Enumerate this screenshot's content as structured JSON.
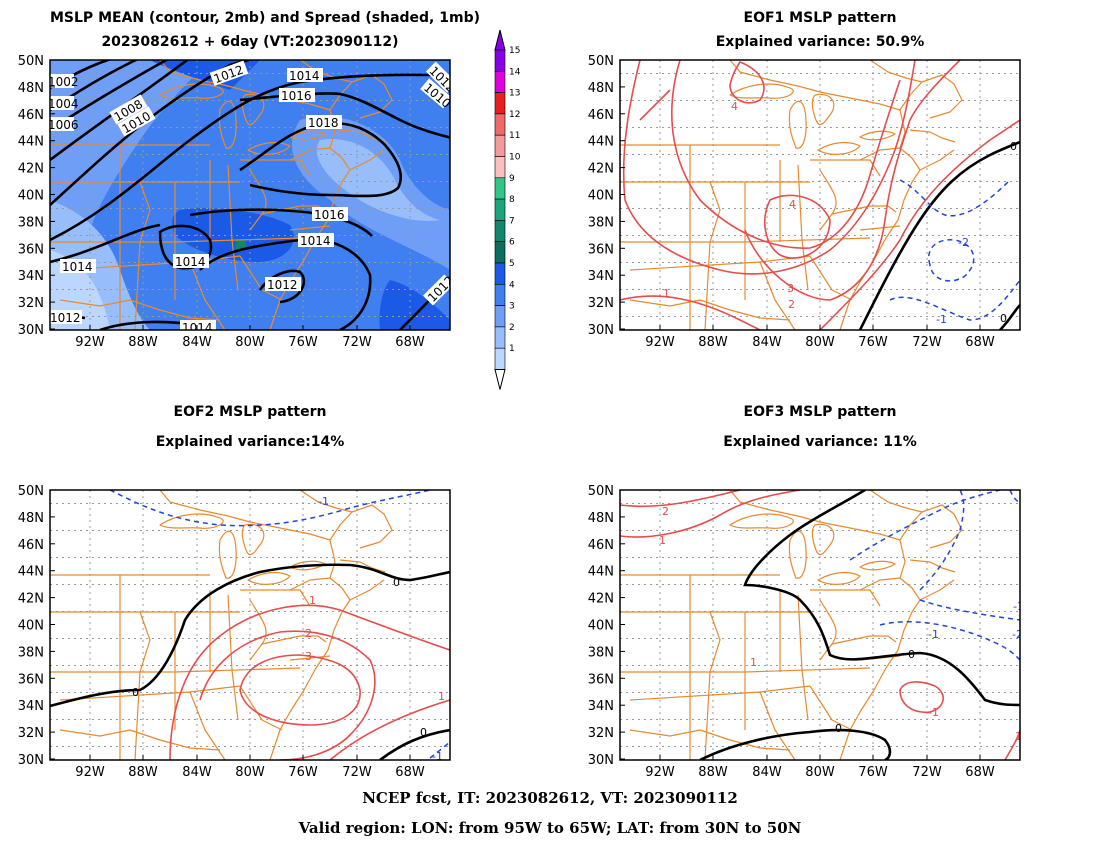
{
  "panels": [
    {
      "id": "mean",
      "title_line1": "MSLP MEAN (contour, 2mb) and Spread (shaded, 1mb)",
      "title_line2": "2023082612 + 6day (VT:2023090112)",
      "contour_labels": [
        "1002",
        "1004",
        "1006",
        "1008",
        "1010",
        "1012",
        "1014",
        "1016",
        "1018",
        "1016",
        "1014",
        "1014",
        "1014",
        "1012",
        "1012",
        "1014",
        "1012",
        "1010",
        "1012"
      ]
    },
    {
      "id": "eof1",
      "title_line1": "EOF1 MSLP pattern",
      "title_line2": "Explained variance: 50.9%",
      "contour_labels": [
        "4",
        "4",
        "3",
        "2",
        "1",
        "0",
        "-2",
        "-1",
        "0"
      ]
    },
    {
      "id": "eof2",
      "title_line1": "EOF2 MSLP pattern",
      "title_line2": "Explained variance:14%",
      "contour_labels": [
        "-1",
        "0",
        "0",
        "1",
        "2",
        "3",
        "1",
        "0",
        "-1"
      ]
    },
    {
      "id": "eof3",
      "title_line1": "EOF3 MSLP pattern",
      "title_line2": "Explained variance: 11%",
      "contour_labels": [
        "2",
        "1",
        "1",
        "0",
        "0",
        "-1",
        "-1",
        "-2",
        "1",
        "-1"
      ]
    }
  ],
  "axes": {
    "lat_ticks": [
      "50N",
      "48N",
      "46N",
      "44N",
      "42N",
      "40N",
      "38N",
      "36N",
      "34N",
      "32N",
      "30N"
    ],
    "lon_ticks": [
      "92W",
      "88W",
      "84W",
      "80W",
      "76W",
      "72W",
      "68W"
    ]
  },
  "colorbar": {
    "levels": [
      "1",
      "2",
      "3",
      "4",
      "5",
      "6",
      "7",
      "8",
      "9",
      "10",
      "11",
      "12",
      "13",
      "14",
      "15"
    ],
    "colors": [
      "#bcd7ff",
      "#97bdfb",
      "#6e9ef5",
      "#3f7ff0",
      "#1a5ae6",
      "#0a6e60",
      "#12876e",
      "#1aa57d",
      "#2dc887",
      "#fcbfbf",
      "#f49a9a",
      "#ee6a6a",
      "#e81f1f",
      "#dd00dd",
      "#8a00e6"
    ]
  },
  "colors": {
    "state_lines": "#e88a2e",
    "positive_contour": "#e84c4c",
    "negative_contour": "#2244dd",
    "zero_contour": "#000000",
    "grid": "#999999"
  },
  "footer": {
    "line1": "NCEP fcst, IT: 2023082612, VT: 2023090112",
    "line2": "Valid region: LON: from 95W to 65W; LAT: from 30N to 50N"
  }
}
